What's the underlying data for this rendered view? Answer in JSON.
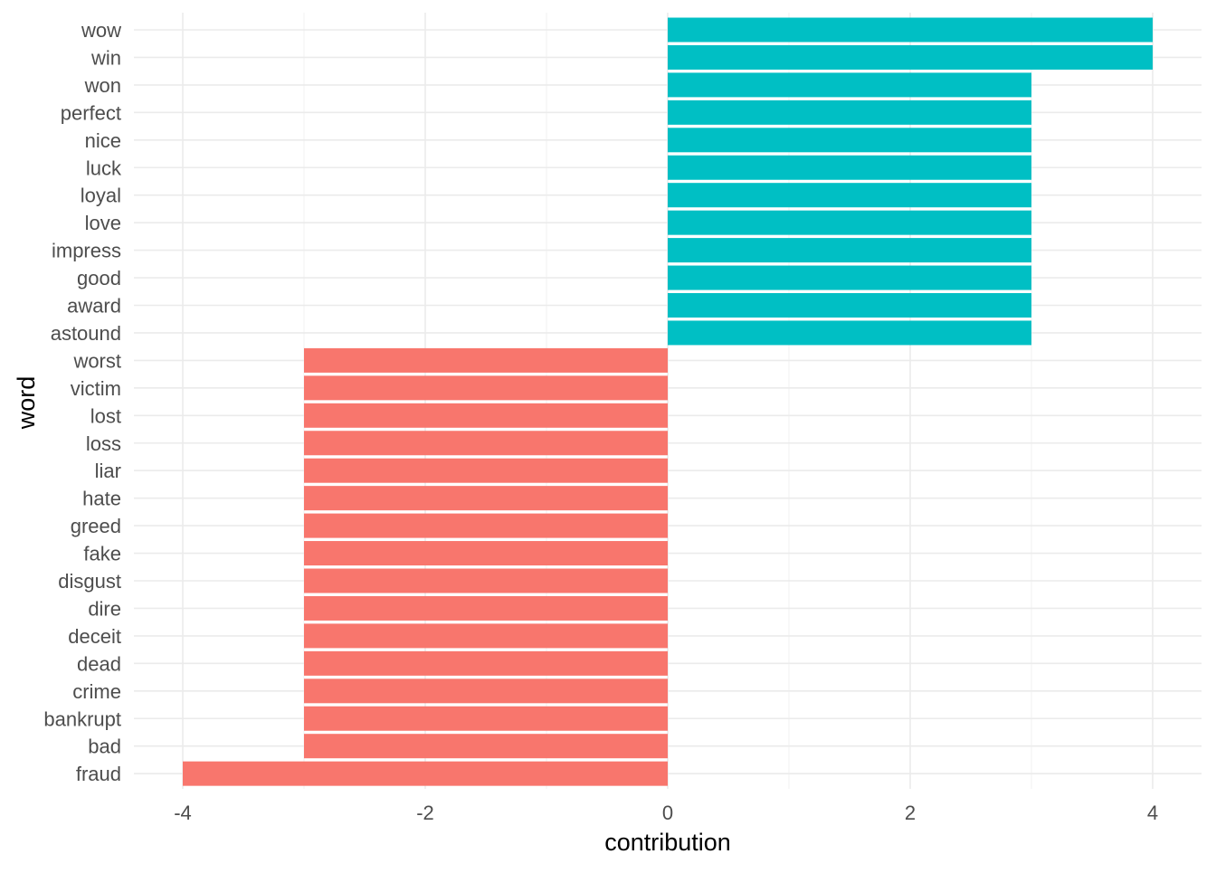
{
  "chart_data": {
    "type": "bar",
    "orientation": "horizontal",
    "xlabel": "contribution",
    "ylabel": "word",
    "xlim": [
      -4.2,
      4.2
    ],
    "x_ticks": [
      -4,
      -2,
      0,
      2,
      4
    ],
    "x_tick_labels": [
      "-4",
      "-2",
      "0",
      "2",
      "4"
    ],
    "grid": true,
    "legend": "none",
    "colors": {
      "positive": "#00BFC4",
      "negative": "#F8766D"
    },
    "categories": [
      "wow",
      "win",
      "won",
      "perfect",
      "nice",
      "luck",
      "loyal",
      "love",
      "impress",
      "good",
      "award",
      "astound",
      "worst",
      "victim",
      "lost",
      "loss",
      "liar",
      "hate",
      "greed",
      "fake",
      "disgust",
      "dire",
      "deceit",
      "dead",
      "crime",
      "bankrupt",
      "bad",
      "fraud"
    ],
    "values": [
      4,
      4,
      3,
      3,
      3,
      3,
      3,
      3,
      3,
      3,
      3,
      3,
      -3,
      -3,
      -3,
      -3,
      -3,
      -3,
      -3,
      -3,
      -3,
      -3,
      -3,
      -3,
      -3,
      -3,
      -3,
      -4
    ]
  }
}
